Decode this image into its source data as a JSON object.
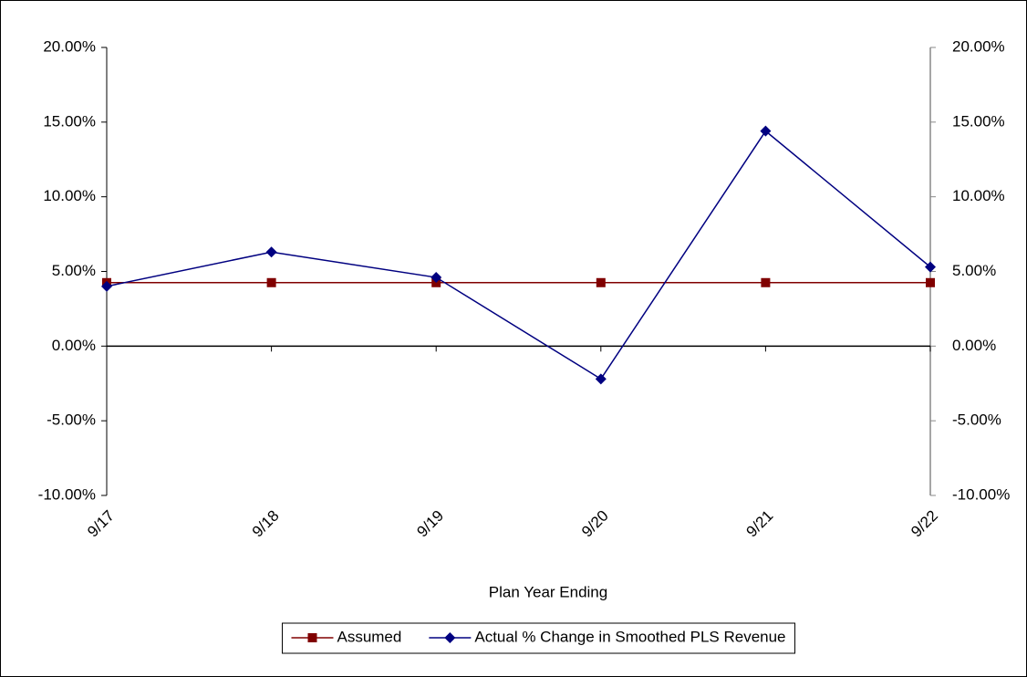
{
  "chart_data": {
    "type": "line",
    "x_label": "Plan Year Ending",
    "categories": [
      "9/17",
      "9/18",
      "9/19",
      "9/20",
      "9/21",
      "9/22"
    ],
    "series": [
      {
        "name": "Assumed",
        "color": "#800000",
        "marker": "square",
        "values": [
          4.25,
          4.25,
          4.25,
          4.25,
          4.25,
          4.25
        ]
      },
      {
        "name": "Actual % Change in Smoothed PLS Revenue",
        "color": "#000080",
        "marker": "diamond",
        "values": [
          4.0,
          6.3,
          4.6,
          -2.2,
          14.4,
          5.3
        ]
      }
    ],
    "ylim": [
      -10,
      20
    ],
    "yticks": [
      {
        "value": -10,
        "label": "-10.00%"
      },
      {
        "value": -5,
        "label": "-5.00%"
      },
      {
        "value": 0,
        "label": "0.00%"
      },
      {
        "value": 5,
        "label": "5.00%"
      },
      {
        "value": 10,
        "label": "10.00%"
      },
      {
        "value": 15,
        "label": "15.00%"
      },
      {
        "value": 20,
        "label": "20.00%"
      }
    ],
    "y2lim": [
      -10,
      20
    ],
    "y2ticks": [
      {
        "value": -10,
        "label": "-10.00%"
      },
      {
        "value": -5,
        "label": "-5.00%"
      },
      {
        "value": 0,
        "label": "0.00%"
      },
      {
        "value": 5,
        "label": "5.00%"
      },
      {
        "value": 10,
        "label": "10.00%"
      },
      {
        "value": 15,
        "label": "15.00%"
      },
      {
        "value": 20,
        "label": "20.00%"
      }
    ],
    "grid": false,
    "legend": "bottom"
  }
}
